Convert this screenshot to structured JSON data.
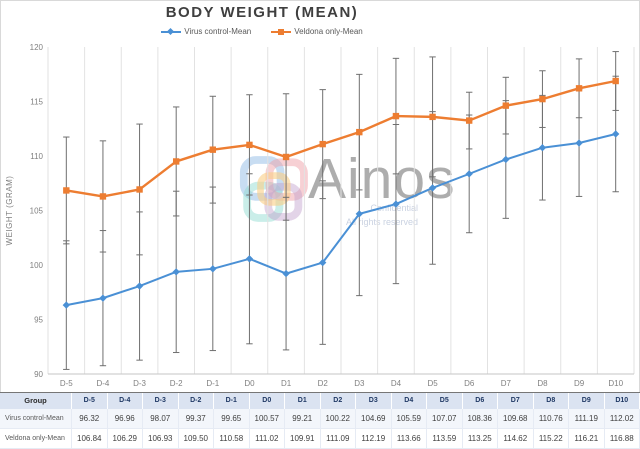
{
  "title": "BODY WEIGHT (MEAN)",
  "watermark": {
    "brand": "Ainos",
    "note_line1": "Confidential",
    "note_line2": "All rights reserved"
  },
  "colors": {
    "virus_blue": "#4a90d5",
    "veldona_orange": "#ed7d31",
    "error_bar": "#6f6f6f",
    "gridline": "#e2e2e2",
    "axis_line": "#c6c6c6",
    "axis_text": "#808080",
    "table_header_bg": "#dbe3f1",
    "table_header_text": "#1f3864"
  },
  "chart_data": {
    "type": "line",
    "title": "BODY WEIGHT (MEAN)",
    "xlabel": "",
    "ylabel": "WEIGHT (GRAM)",
    "ylim": [
      90,
      120
    ],
    "ytick_step": 5,
    "grid": "vertical-only",
    "legend_position": "top-center",
    "error_bars": true,
    "categories": [
      "D-5",
      "D-4",
      "D-3",
      "D-2",
      "D-1",
      "D0",
      "D1",
      "D2",
      "D3",
      "D4",
      "D5",
      "D6",
      "D7",
      "D8",
      "D9",
      "D10"
    ],
    "series": [
      {
        "name": "Virus control-Mean",
        "color": "#4a90d5",
        "marker": "diamond",
        "values": [
          96.32,
          96.96,
          98.07,
          99.37,
          99.65,
          100.57,
          99.21,
          100.22,
          104.69,
          105.59,
          107.07,
          108.36,
          109.68,
          110.76,
          111.19,
          112.02
        ],
        "error_bars_est": [
          5.9,
          6.2,
          6.8,
          7.4,
          7.5,
          7.8,
          7.0,
          7.5,
          7.5,
          7.3,
          7.0,
          5.4,
          5.4,
          4.8,
          4.9,
          5.3
        ]
      },
      {
        "name": "Veldona only-Mean",
        "color": "#ed7d31",
        "marker": "square",
        "values": [
          106.84,
          106.29,
          106.93,
          109.5,
          110.58,
          111.02,
          109.91,
          111.09,
          112.19,
          113.66,
          113.59,
          113.25,
          114.62,
          115.22,
          116.21,
          116.88
        ],
        "error_bars_est": [
          4.9,
          5.1,
          6.0,
          5.0,
          4.9,
          4.6,
          5.8,
          5.0,
          5.3,
          5.3,
          5.5,
          2.6,
          2.6,
          2.6,
          2.7,
          2.7
        ]
      }
    ]
  },
  "table": {
    "header": [
      "Group",
      "D-5",
      "D-4",
      "D-3",
      "D-2",
      "D-1",
      "D0",
      "D1",
      "D2",
      "D3",
      "D4",
      "D5",
      "D6",
      "D7",
      "D8",
      "D9",
      "D10"
    ],
    "rows": [
      {
        "label": "Virus control-Mean",
        "values": [
          96.32,
          96.96,
          98.07,
          99.37,
          99.65,
          100.57,
          99.21,
          100.22,
          104.69,
          105.59,
          107.07,
          108.36,
          109.68,
          110.76,
          111.19,
          112.02
        ]
      },
      {
        "label": "Veldona only-Mean",
        "values": [
          106.84,
          106.29,
          106.93,
          109.5,
          110.58,
          111.02,
          109.91,
          111.09,
          112.19,
          113.66,
          113.59,
          113.25,
          114.62,
          115.22,
          116.21,
          116.88
        ]
      }
    ]
  }
}
